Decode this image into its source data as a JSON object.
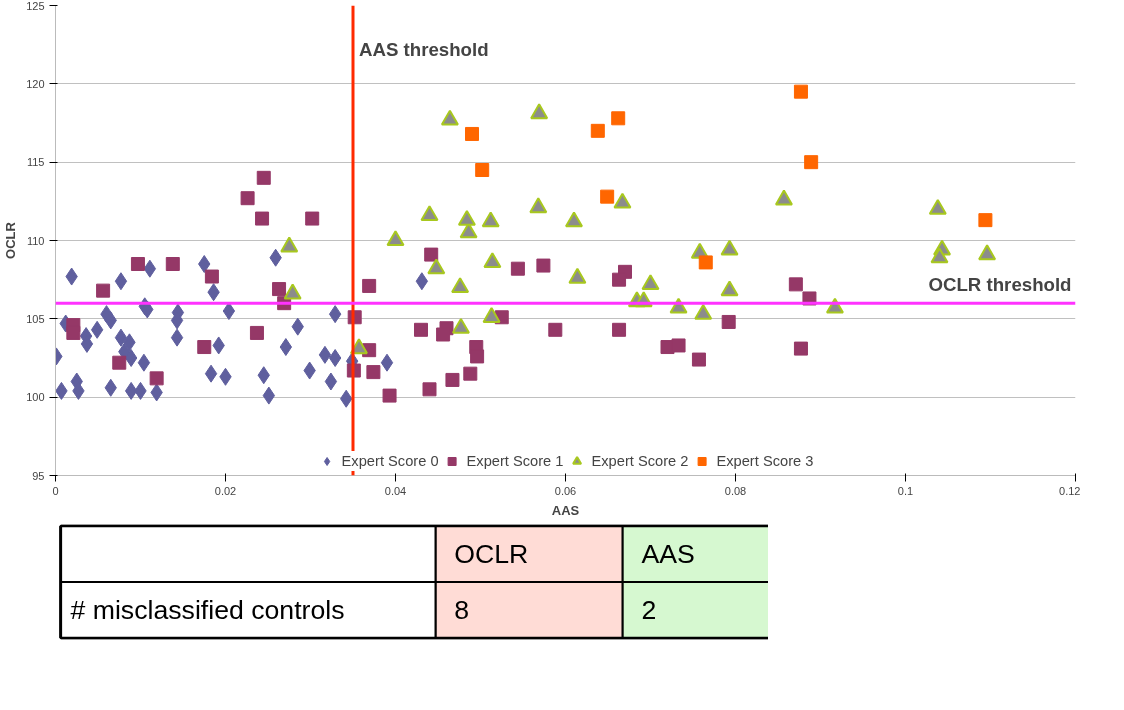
{
  "chart_data": [
    {
      "type": "scatter",
      "xlabel": "AAS",
      "ylabel": "OCLR",
      "xlim": [
        0,
        0.12
      ],
      "xticks": [
        0,
        0.02,
        0.04,
        0.06,
        0.08,
        0.1,
        0.12
      ],
      "ylim": [
        95,
        125
      ],
      "yticks": [
        95,
        100,
        105,
        110,
        115,
        120,
        125
      ],
      "grid": "y",
      "legend": "bottom",
      "ref_lines": [
        {
          "axis": "x",
          "value": 0.035,
          "label": "AAS threshold",
          "color": "#ff2a00"
        },
        {
          "axis": "y",
          "value": 106,
          "label": "OCLR threshold",
          "color": "#ff33ff"
        }
      ],
      "series": [
        {
          "name": "Expert Score 0",
          "color": "#5f5f9e",
          "marker": "diamond",
          "x": [
            0.0019,
            0.0077,
            0.0111,
            0.0175,
            0.0259,
            0.0186,
            0.0105,
            0.0108,
            0.0144,
            0.0204,
            0.006,
            0.0065,
            0.0143,
            0.0012,
            0.0049,
            0.0285,
            0.0329,
            0.0036,
            0.0037,
            0.0077,
            0.0087,
            0.0143,
            0.0192,
            0.0271,
            0.0001,
            0.0081,
            0.0089,
            0.0104,
            0.0317,
            0.0329,
            0.0349,
            0.0183,
            0.02,
            0.0245,
            0.0299,
            0.0324,
            0.0025,
            0.0007,
            0.0027,
            0.0065,
            0.0089,
            0.01,
            0.0119,
            0.0251,
            0.0342,
            0.0431,
            0.039
          ],
          "values": [
            107.7,
            107.4,
            108.2,
            108.5,
            108.9,
            106.7,
            105.8,
            105.6,
            105.4,
            105.5,
            105.3,
            104.9,
            104.9,
            104.7,
            104.3,
            104.5,
            105.3,
            103.9,
            103.4,
            103.8,
            103.5,
            103.8,
            103.3,
            103.2,
            102.6,
            102.9,
            102.5,
            102.2,
            102.7,
            102.5,
            102.3,
            101.5,
            101.3,
            101.4,
            101.7,
            101.0,
            101.0,
            100.4,
            100.4,
            100.6,
            100.4,
            100.4,
            100.3,
            100.1,
            99.9,
            107.4,
            102.2
          ]
        },
        {
          "name": "Expert Score 1",
          "color": "#953867",
          "marker": "square",
          "x": [
            0.0097,
            0.0138,
            0.0184,
            0.0056,
            0.0263,
            0.0269,
            0.0021,
            0.0021,
            0.0237,
            0.0175,
            0.0075,
            0.0119,
            0.0351,
            0.0245,
            0.0226,
            0.0243,
            0.0302,
            0.0442,
            0.0369,
            0.0352,
            0.0525,
            0.043,
            0.046,
            0.0456,
            0.0588,
            0.0663,
            0.0544,
            0.0574,
            0.067,
            0.0663,
            0.0369,
            0.0495,
            0.0496,
            0.0374,
            0.0488,
            0.0467,
            0.044,
            0.0393,
            0.072,
            0.0733,
            0.0871,
            0.0887,
            0.0792,
            0.0877,
            0.0757
          ],
          "values": [
            108.5,
            108.5,
            107.7,
            106.8,
            106.9,
            106.0,
            104.6,
            104.1,
            104.1,
            103.2,
            102.2,
            101.2,
            101.7,
            114.0,
            112.7,
            111.4,
            111.4,
            109.1,
            107.1,
            105.1,
            105.1,
            104.3,
            104.4,
            104.0,
            104.3,
            104.3,
            108.2,
            108.4,
            108.0,
            107.5,
            103.0,
            103.2,
            102.6,
            101.6,
            101.5,
            101.1,
            100.5,
            100.1,
            103.2,
            103.3,
            107.2,
            106.3,
            104.8,
            103.1,
            102.4
          ]
        },
        {
          "name": "Expert Score 2",
          "color": "#8c8c8c",
          "marker": "triangle",
          "x": [
            0.0275,
            0.0279,
            0.0357,
            0.04,
            0.0448,
            0.0476,
            0.0486,
            0.0484,
            0.0514,
            0.0614,
            0.07,
            0.0684,
            0.0692,
            0.0733,
            0.0513,
            0.0477,
            0.0464,
            0.0569,
            0.044,
            0.0512,
            0.0568,
            0.061,
            0.0667,
            0.0857,
            0.1038,
            0.0758,
            0.0793,
            0.1043,
            0.104,
            0.1096,
            0.0793,
            0.0762,
            0.0917
          ],
          "values": [
            109.6,
            106.6,
            103.1,
            110.0,
            108.2,
            107.0,
            110.5,
            111.3,
            108.6,
            107.6,
            107.2,
            106.1,
            106.1,
            105.7,
            105.1,
            104.4,
            117.7,
            118.1,
            111.6,
            111.2,
            112.1,
            111.2,
            112.4,
            112.6,
            112.0,
            109.2,
            109.4,
            109.4,
            108.9,
            109.1,
            106.8,
            105.3,
            105.7
          ]
        },
        {
          "name": "Expert Score 3",
          "color": "#ff6600",
          "marker": "square",
          "x": [
            0.049,
            0.0502,
            0.0638,
            0.0662,
            0.0649,
            0.0877,
            0.0889,
            0.1094,
            0.0765
          ],
          "values": [
            116.8,
            114.5,
            117.0,
            117.8,
            112.8,
            119.5,
            115.0,
            111.3,
            108.6
          ]
        }
      ]
    },
    {
      "type": "other",
      "categories": [
        "OCLR",
        "AAS"
      ],
      "values": [
        8,
        2
      ],
      "data_labels": true,
      "colors": [
        "#ffdcd6",
        "#d6f8d0"
      ],
      "annotations": [
        "# misclassified controls"
      ]
    }
  ]
}
